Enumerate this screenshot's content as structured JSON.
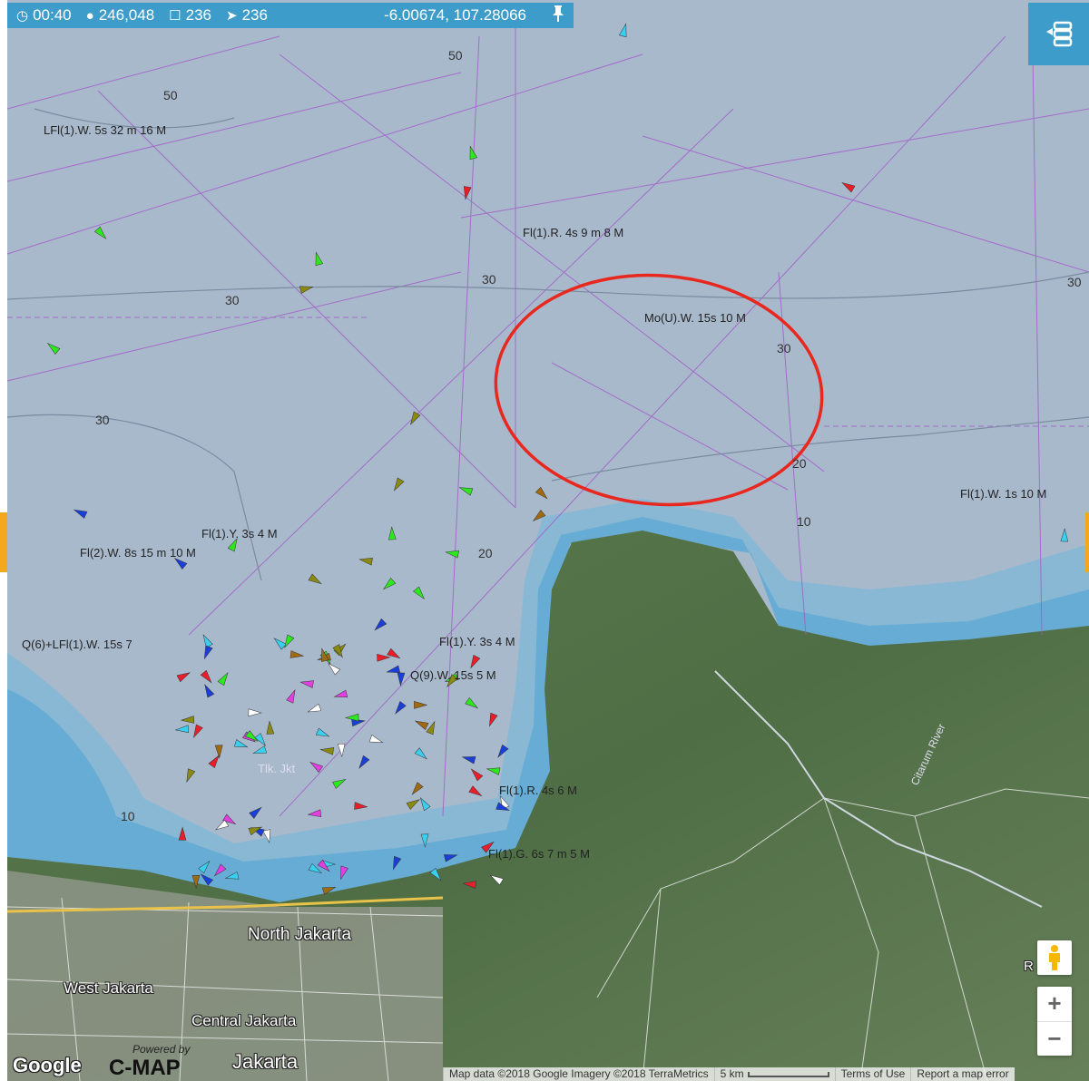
{
  "status_bar": {
    "time": "00:40",
    "vessels_total": "246,048",
    "vessels_in_view": "236",
    "vessels_moving": "236",
    "coordinates": "-6.00674, 107.28066",
    "icons": {
      "time": "clock-icon",
      "total": "globe-icon",
      "view": "square-icon",
      "moving": "navigation-arrow-icon",
      "pin": "pin-icon"
    }
  },
  "menu_button_icon": "layers-menu-icon",
  "map": {
    "city_labels": [
      "North Jakarta",
      "West Jakarta",
      "Central Jakarta",
      "Jakarta"
    ],
    "water_labels": [
      "Tlk. Jkt"
    ],
    "river_label": "Citarum River",
    "light_labels": [
      "LFl(1).W. 5s 32 m 16 M",
      "Fl(1).R. 4s 9 m 8 M",
      "Mo(U).W. 15s 10 M",
      "Fl(1).Y. 3s 4 M",
      "Fl(2).W. 8s 15 m 10 M",
      "Q(6)+LFl(1).W. 15s 7",
      "Fl(1).Y. 3s 4 M",
      "Q(9).W. 15s 5 M",
      "Fl(1).W. 1s 10 M",
      "Fl(1).R. 4s 6 M",
      "Fl(1).G. 6s 7 m 5 M"
    ],
    "depths": [
      "50",
      "50",
      "30",
      "30",
      "30",
      "30",
      "20",
      "20",
      "10",
      "10",
      "30"
    ],
    "highlight_color": "#e8281e",
    "sea_color": "#a9b9cc",
    "accent_color": "#3d9cc9"
  },
  "controls": {
    "zoom_in": "+",
    "zoom_out": "−",
    "street_view_icon": "pegman-icon",
    "partial_label": "R    sc"
  },
  "branding": {
    "google": "Google",
    "powered_by": "Powered by",
    "cmap": "C-MAP"
  },
  "attribution": {
    "map_data": "Map data ©2018 Google Imagery ©2018 TerraMetrics",
    "scale": "5 km",
    "terms": "Terms of Use",
    "report": "Report a map error"
  }
}
